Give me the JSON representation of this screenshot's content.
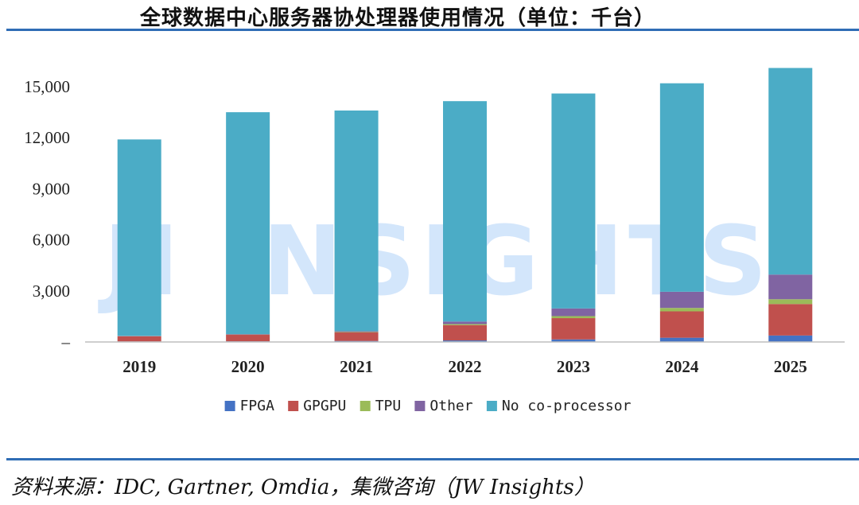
{
  "title": "全球数据中心服务器协处理器使用情况（单位：千台）",
  "source": "资料来源：IDC, Gartner, Omdia，集微咨询（JW Insights）",
  "watermark": "JI INSIGHTS",
  "chart_data": {
    "type": "bar",
    "stacked": true,
    "title": "全球数据中心服务器协处理器使用情况（单位：千台）",
    "categories": [
      "2019",
      "2020",
      "2021",
      "2022",
      "2023",
      "2024",
      "2025"
    ],
    "y_tick_labels": [
      "–",
      "3,000",
      "6,000",
      "9,000",
      "12,000",
      "15,000"
    ],
    "y_tick_values": [
      0,
      3000,
      6000,
      9000,
      12000,
      15000
    ],
    "ylim": [
      0,
      16500
    ],
    "legend_position": "bottom",
    "grid": false,
    "series": [
      {
        "name": "FPGA",
        "color": "#4472c4",
        "values": [
          30,
          40,
          60,
          90,
          150,
          250,
          380
        ]
      },
      {
        "name": "GPGPU",
        "color": "#c0504d",
        "values": [
          300,
          380,
          500,
          900,
          1250,
          1550,
          1850
        ]
      },
      {
        "name": "TPU",
        "color": "#9bbb59",
        "values": [
          10,
          15,
          30,
          60,
          120,
          200,
          280
        ]
      },
      {
        "name": "Other",
        "color": "#8064a2",
        "values": [
          20,
          30,
          50,
          150,
          450,
          950,
          1450
        ]
      },
      {
        "name": "No co-processor",
        "color": "#4bacc6",
        "values": [
          11540,
          13035,
          12960,
          12950,
          12630,
          12250,
          12140
        ]
      }
    ]
  }
}
